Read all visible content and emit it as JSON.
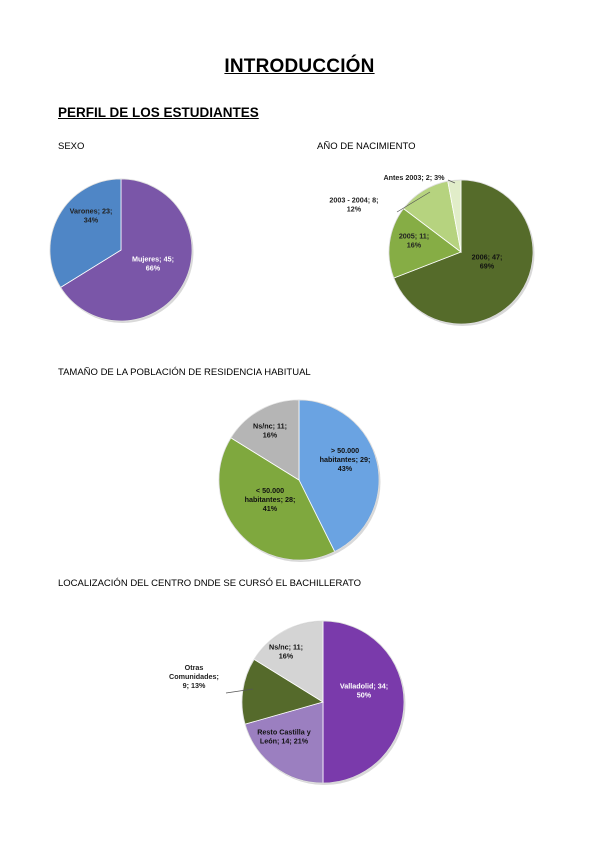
{
  "page": {
    "title": "INTRODUCCIÓN",
    "section": "PERFIL DE LOS ESTUDIANTES"
  },
  "chart_data": [
    {
      "type": "pie",
      "title": "SEXO",
      "slices": [
        {
          "label": "Mujeres",
          "value": 45,
          "percent": "66%",
          "color": "#7a56a8"
        },
        {
          "label": "Varones",
          "value": 23,
          "percent": "34%",
          "color": "#4f86c6"
        }
      ]
    },
    {
      "type": "pie",
      "title": "AÑO DE NACIMIENTO",
      "slices": [
        {
          "label": "2006",
          "value": 47,
          "percent": "69%",
          "color": "#556b2a"
        },
        {
          "label": "2005",
          "value": 11,
          "percent": "16%",
          "color": "#86ad45"
        },
        {
          "label": "2003 - 2004",
          "value": 8,
          "percent": "12%",
          "color": "#b6d37f"
        },
        {
          "label": "Antes 2003",
          "value": 2,
          "percent": "3%",
          "color": "#e1edc9"
        }
      ]
    },
    {
      "type": "pie",
      "title": "TAMAÑO DE LA POBLACIÓN DE RESIDENCIA HABITUAL",
      "slices": [
        {
          "label": "> 50.000 habitantes",
          "value": 29,
          "percent": "43%",
          "color": "#6aa3e2"
        },
        {
          "label": "< 50.000 habitantes",
          "value": 28,
          "percent": "41%",
          "color": "#7fa83e"
        },
        {
          "label": "Ns/nc",
          "value": 11,
          "percent": "16%",
          "color": "#b5b5b5"
        }
      ]
    },
    {
      "type": "pie",
      "title": "LOCALIZACIÓN DEL CENTRO DNDE SE CURSÓ EL BACHILLERATO",
      "slices": [
        {
          "label": "Valladolid",
          "value": 34,
          "percent": "50%",
          "color": "#7a3aab"
        },
        {
          "label": "Resto Castilla y León",
          "value": 14,
          "percent": "21%",
          "color": "#9b7fc0"
        },
        {
          "label": "Otras Comunidades",
          "value": 9,
          "percent": "13%",
          "color": "#556a2b"
        },
        {
          "label": "Ns/nc",
          "value": 11,
          "percent": "16%",
          "color": "#d4d4d4"
        }
      ]
    }
  ]
}
